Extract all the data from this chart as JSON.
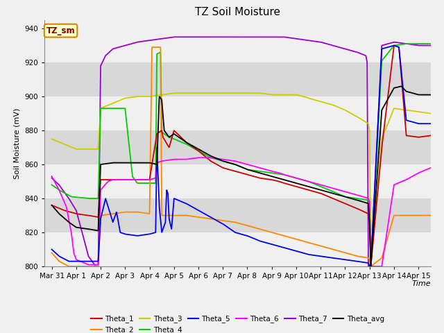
{
  "title": "TZ Soil Moisture",
  "xlabel": "Time",
  "ylabel": "Soil Moisture (mV)",
  "ylim": [
    800,
    945
  ],
  "xlim": [
    -0.3,
    15.5
  ],
  "xtick_labels": [
    "Mar 31",
    "Apr 1",
    "Apr 2",
    "Apr 3",
    "Apr 4",
    "Apr 5",
    "Apr 6",
    "Apr 7",
    "Apr 8",
    "Apr 9",
    "Apr 10",
    "Apr 11",
    "Apr 12",
    "Apr 13",
    "Apr 14",
    "Apr 15"
  ],
  "xtick_positions": [
    0,
    1,
    2,
    3,
    4,
    5,
    6,
    7,
    8,
    9,
    10,
    11,
    12,
    13,
    14,
    15
  ],
  "ytick_positions": [
    800,
    820,
    840,
    860,
    880,
    900,
    920,
    940
  ],
  "colors": {
    "Theta_1": "#cc0000",
    "Theta_2": "#ff8800",
    "Theta_3": "#cccc00",
    "Theta_4": "#00cc00",
    "Theta_5": "#0000ee",
    "Theta_6": "#ff00ff",
    "Theta_7": "#9900cc",
    "Theta_avg": "#000000"
  },
  "legend_box_color": "#ffffcc",
  "legend_box_edge": "#cc8800",
  "label_box_text": "TZ_sm",
  "background_color": "#e8e8e8",
  "band_light": "#f0f0f0",
  "band_dark": "#d8d8d8",
  "title_fontsize": 11,
  "axis_fontsize": 8,
  "tick_fontsize": 7.5
}
